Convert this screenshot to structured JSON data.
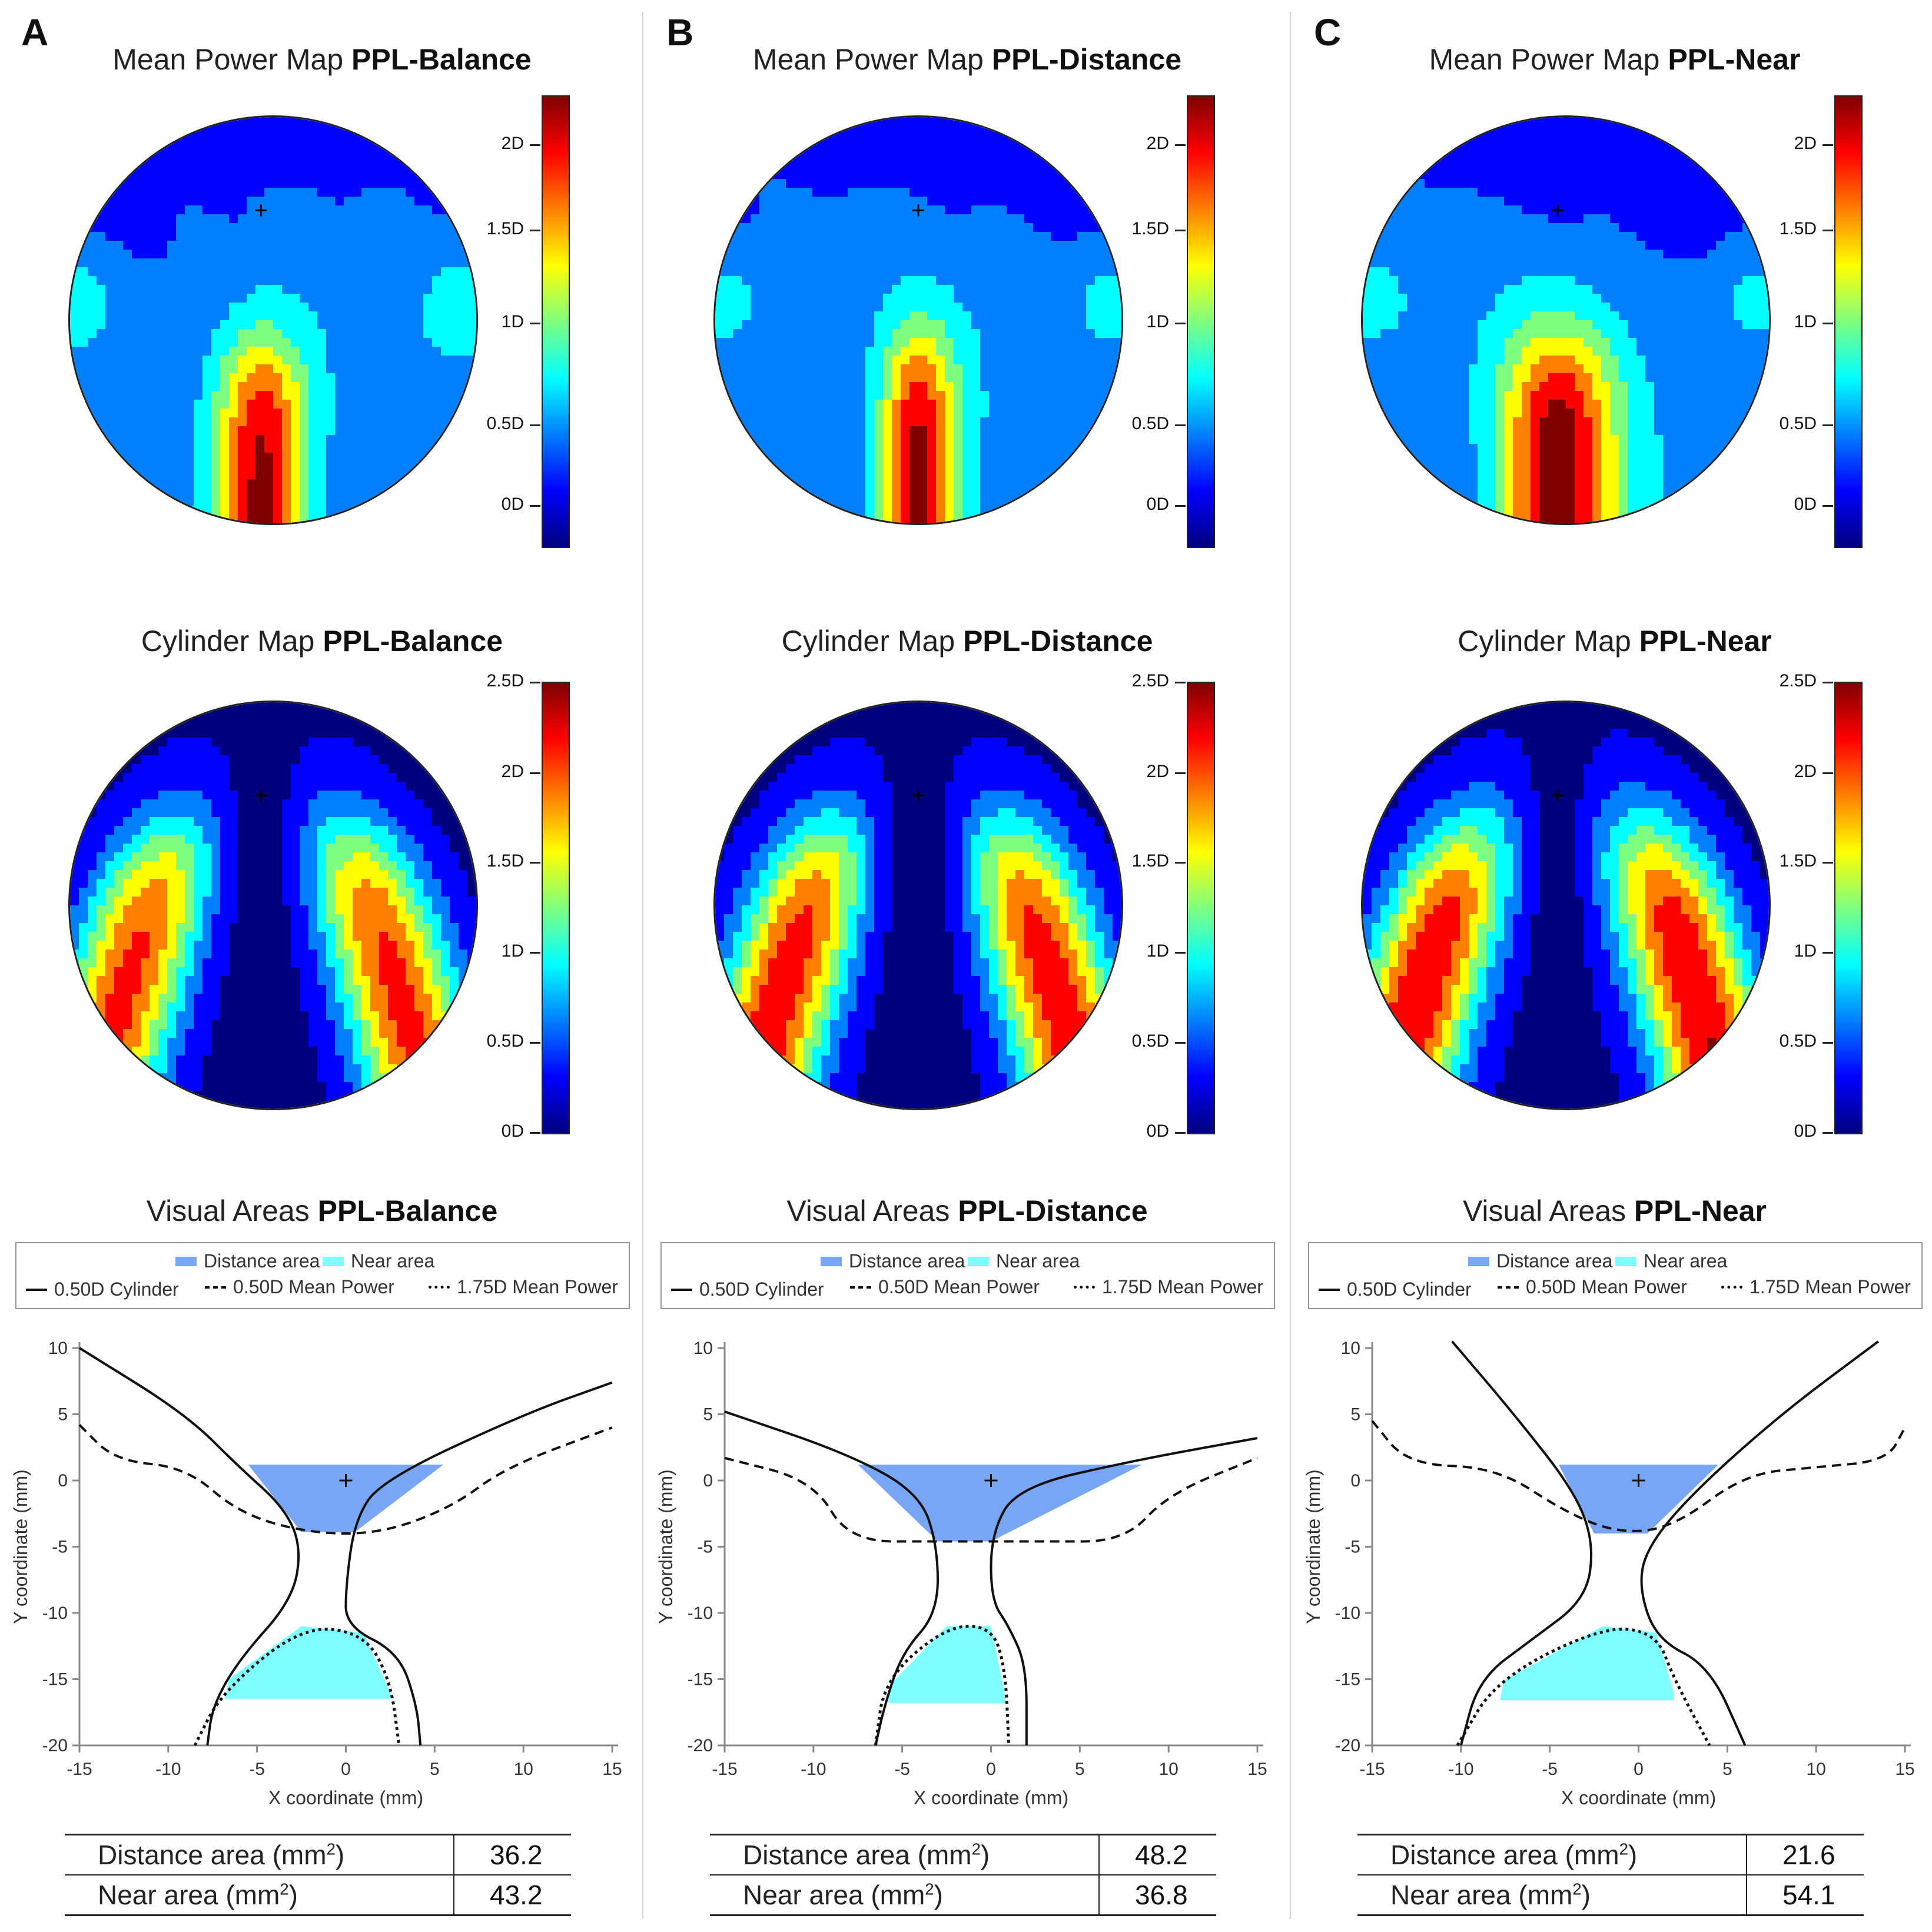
{
  "panels": [
    {
      "letter": "A",
      "mean_title": "Mean Power Map",
      "cyl_title": "Cylinder Map",
      "va_title": "Visual Areas",
      "design": "PPL-Balance",
      "distance_label": "Distance area (mm",
      "near_label": "Near area (mm",
      "distance_value": "36.2",
      "near_value": "43.2"
    },
    {
      "letter": "B",
      "mean_title": "Mean Power Map",
      "cyl_title": "Cylinder Map",
      "va_title": "Visual Areas",
      "design": "PPL-Distance",
      "distance_label": "Distance area (mm",
      "near_label": "Near area (mm",
      "distance_value": "48.2",
      "near_value": "36.8"
    },
    {
      "letter": "C",
      "mean_title": "Mean Power Map",
      "cyl_title": "Cylinder Map",
      "va_title": "Visual Areas",
      "design": "PPL-Near",
      "distance_label": "Distance area (mm",
      "near_label": "Near area (mm",
      "distance_value": "21.6",
      "near_value": "54.1"
    }
  ],
  "mean_colorbar_ticks": [
    "2D",
    "1.5D",
    "1D",
    "0.5D",
    "0D"
  ],
  "cyl_colorbar_ticks": [
    "2.5D",
    "2D",
    "1.5D",
    "1D",
    "0.5D",
    "0D"
  ],
  "legend": {
    "distance": "Distance area",
    "near": "Near area",
    "cyl": "0.50D Cylinder",
    "mean050": "0.50D Mean Power",
    "mean175": "1.75D Mean Power"
  },
  "axes": {
    "xlabel": "X coordinate (mm)",
    "ylabel": "Y coordinate (mm)",
    "xticks": [
      "-15",
      "-10",
      "-5",
      "0",
      "5",
      "10",
      "15"
    ],
    "yticks": [
      "10",
      "5",
      "0",
      "-5",
      "-10",
      "-15",
      "-20"
    ]
  },
  "squared": "2",
  "colors": {
    "distance_area": "#78a6f5",
    "near_area": "#80ffff",
    "jet": [
      "#00007f",
      "#0000ff",
      "#007fff",
      "#00ffff",
      "#7fff7f",
      "#ffff00",
      "#ff7f00",
      "#ff0000",
      "#7f0000"
    ]
  },
  "chart_data": {
    "type": "line",
    "xlim": [
      -15,
      15
    ],
    "ylim": [
      -20,
      10
    ],
    "panels": [
      {
        "design": "PPL-Balance",
        "distance_area_mm2": 36.2,
        "near_area_mm2": 43.2,
        "cyl_left": [
          [
            -15,
            10
          ],
          [
            -9,
            5
          ],
          [
            -6,
            1
          ],
          [
            -3.5,
            -2
          ],
          [
            -2.5,
            -5
          ],
          [
            -3,
            -9
          ],
          [
            -6,
            -13.5
          ],
          [
            -7.5,
            -17
          ],
          [
            -7.8,
            -20
          ]
        ],
        "cyl_right": [
          [
            15,
            7.4
          ],
          [
            10,
            5
          ],
          [
            2,
            0
          ],
          [
            0.5,
            -3
          ],
          [
            0,
            -8
          ],
          [
            0,
            -11
          ],
          [
            3,
            -13
          ],
          [
            4,
            -17
          ],
          [
            4.2,
            -20
          ]
        ],
        "mean050": [
          [
            -15,
            4.2
          ],
          [
            -13,
            1.5
          ],
          [
            -9,
            1
          ],
          [
            -6,
            -2.5
          ],
          [
            -2,
            -4
          ],
          [
            2,
            -4
          ],
          [
            6,
            -2
          ],
          [
            9,
            1
          ],
          [
            15,
            4
          ]
        ],
        "mean175": [
          [
            -8.5,
            -20
          ],
          [
            -7,
            -16
          ],
          [
            -2.5,
            -11
          ],
          [
            1,
            -11.5
          ],
          [
            2.5,
            -15
          ],
          [
            3,
            -20
          ]
        ],
        "distance_area": [
          [
            -5.5,
            1.2
          ],
          [
            5.5,
            1.2
          ],
          [
            0.5,
            -3.9
          ],
          [
            -2.5,
            -3.9
          ]
        ],
        "near_area_top": -11,
        "near_area_bottom": -16.5,
        "fitting_cross": [
          0,
          0
        ]
      },
      {
        "design": "PPL-Distance",
        "distance_area_mm2": 48.2,
        "near_area_mm2": 36.8,
        "cyl_left": [
          [
            -15,
            5.2
          ],
          [
            -8,
            2
          ],
          [
            -4,
            -1
          ],
          [
            -3,
            -5
          ],
          [
            -3,
            -10
          ],
          [
            -5,
            -13
          ],
          [
            -6,
            -17
          ],
          [
            -6.5,
            -20
          ]
        ],
        "cyl_right": [
          [
            15,
            3.2
          ],
          [
            8,
            1.5
          ],
          [
            1.5,
            -0.5
          ],
          [
            0,
            -4
          ],
          [
            0,
            -9
          ],
          [
            1,
            -11
          ],
          [
            2,
            -14
          ],
          [
            2,
            -20
          ]
        ],
        "mean050": [
          [
            -15,
            1.7
          ],
          [
            -10,
            0
          ],
          [
            -8,
            -4.6
          ],
          [
            -3,
            -4.6
          ],
          [
            3,
            -4.6
          ],
          [
            7.5,
            -4.6
          ],
          [
            10,
            -1
          ],
          [
            15,
            1.7
          ]
        ],
        "mean175": [
          [
            -6.5,
            -20
          ],
          [
            -6,
            -15
          ],
          [
            -2.5,
            -11
          ],
          [
            0,
            -11
          ],
          [
            0.8,
            -14
          ],
          [
            1,
            -20
          ]
        ],
        "distance_area": [
          [
            -7.5,
            1.2
          ],
          [
            8.5,
            1.2
          ],
          [
            0,
            -4.6
          ],
          [
            -3,
            -4.6
          ]
        ],
        "near_area_top": -11,
        "near_area_bottom": -16.8,
        "fitting_cross": [
          0,
          0
        ]
      },
      {
        "design": "PPL-Near",
        "distance_area_mm2": 21.6,
        "near_area_mm2": 54.1,
        "cyl_left": [
          [
            -10.5,
            10.5
          ],
          [
            -7,
            5
          ],
          [
            -3.5,
            -1
          ],
          [
            -2.5,
            -5
          ],
          [
            -3,
            -9
          ],
          [
            -6,
            -12
          ],
          [
            -9,
            -15
          ],
          [
            -10,
            -20
          ]
        ],
        "cyl_right": [
          [
            13.5,
            10.5
          ],
          [
            8,
            5
          ],
          [
            3,
            -1
          ],
          [
            0.5,
            -5
          ],
          [
            0,
            -8
          ],
          [
            1,
            -12
          ],
          [
            4,
            -14
          ],
          [
            6,
            -20
          ]
        ],
        "mean050": [
          [
            -15,
            4.5
          ],
          [
            -13,
            1.2
          ],
          [
            -8,
            1
          ],
          [
            -4,
            -2.5
          ],
          [
            -1,
            -4
          ],
          [
            2,
            -3.5
          ],
          [
            6,
            0.5
          ],
          [
            10,
            1
          ],
          [
            14,
            1.5
          ],
          [
            15,
            4
          ]
        ],
        "mean175": [
          [
            -10.2,
            -20
          ],
          [
            -8,
            -15
          ],
          [
            -2,
            -11
          ],
          [
            1,
            -11.5
          ],
          [
            2,
            -15
          ],
          [
            4,
            -20
          ]
        ],
        "distance_area": [
          [
            -4.5,
            1.2
          ],
          [
            4.5,
            1.2
          ],
          [
            0.5,
            -4
          ],
          [
            -2.5,
            -4
          ]
        ],
        "near_area_top": -11,
        "near_area_bottom": -16.6,
        "fitting_cross": [
          0,
          0
        ]
      }
    ]
  }
}
